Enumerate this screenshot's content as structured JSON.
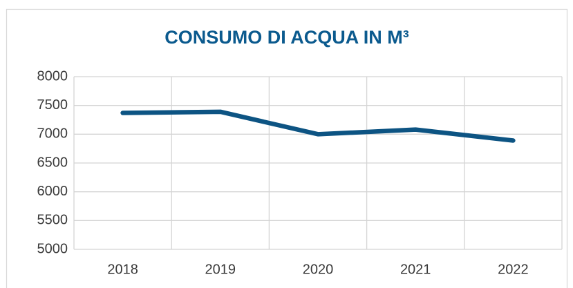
{
  "chart_data": {
    "type": "line",
    "title": "CONSUMO DI ACQUA IN M³",
    "categories": [
      "2018",
      "2019",
      "2020",
      "2021",
      "2022"
    ],
    "values": [
      7370,
      7390,
      7000,
      7080,
      6890
    ],
    "color": "#0d5483",
    "ylim": [
      5000,
      8000
    ],
    "yticks": [
      5000,
      5500,
      6000,
      6500,
      7000,
      7500,
      8000
    ],
    "grid": true
  }
}
